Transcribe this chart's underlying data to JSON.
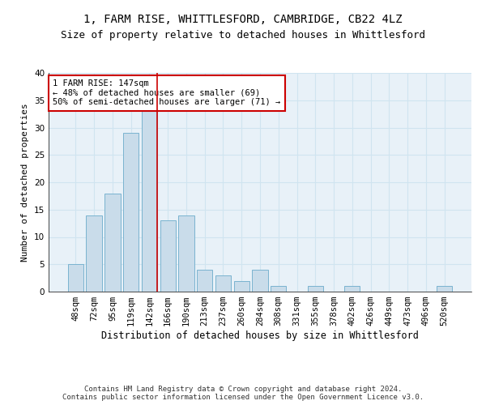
{
  "title_line1": "1, FARM RISE, WHITTLESFORD, CAMBRIDGE, CB22 4LZ",
  "title_line2": "Size of property relative to detached houses in Whittlesford",
  "xlabel": "Distribution of detached houses by size in Whittlesford",
  "ylabel": "Number of detached properties",
  "categories": [
    "48sqm",
    "72sqm",
    "95sqm",
    "119sqm",
    "142sqm",
    "166sqm",
    "190sqm",
    "213sqm",
    "237sqm",
    "260sqm",
    "284sqm",
    "308sqm",
    "331sqm",
    "355sqm",
    "378sqm",
    "402sqm",
    "426sqm",
    "449sqm",
    "473sqm",
    "496sqm",
    "520sqm"
  ],
  "values": [
    5,
    14,
    18,
    29,
    33,
    13,
    14,
    4,
    3,
    2,
    4,
    1,
    0,
    1,
    0,
    1,
    0,
    0,
    0,
    0,
    1
  ],
  "bar_color": "#c9dcea",
  "bar_edge_color": "#7ab3d0",
  "grid_color": "#d0e4f0",
  "bg_color": "#e8f1f8",
  "annotation_text": "1 FARM RISE: 147sqm\n← 48% of detached houses are smaller (69)\n50% of semi-detached houses are larger (71) →",
  "annotation_box_color": "#ffffff",
  "annotation_box_edge": "#cc0000",
  "vline_color": "#cc0000",
  "vline_x_index": 4,
  "ylim": [
    0,
    40
  ],
  "yticks": [
    0,
    5,
    10,
    15,
    20,
    25,
    30,
    35,
    40
  ],
  "footer_line1": "Contains HM Land Registry data © Crown copyright and database right 2024.",
  "footer_line2": "Contains public sector information licensed under the Open Government Licence v3.0.",
  "title1_fontsize": 10,
  "title2_fontsize": 9,
  "xlabel_fontsize": 8.5,
  "ylabel_fontsize": 8,
  "tick_fontsize": 7.5,
  "annotation_fontsize": 7.5,
  "footer_fontsize": 6.5
}
